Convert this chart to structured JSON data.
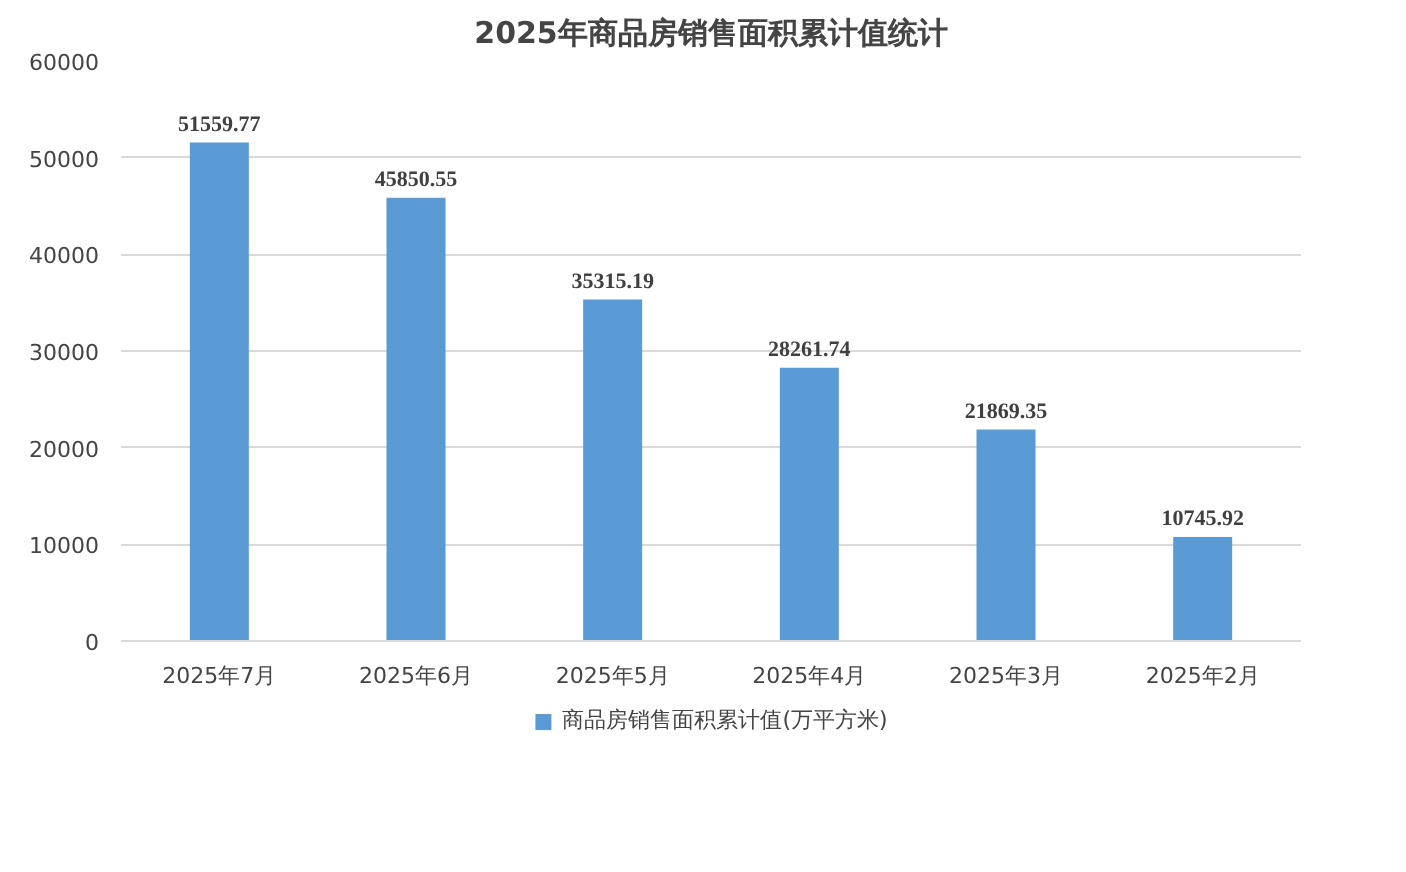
{
  "chart_data": {
    "type": "bar",
    "title": "2025年商品房销售面积累计值统计",
    "categories": [
      "2025年7月",
      "2025年6月",
      "2025年5月",
      "2025年4月",
      "2025年3月",
      "2025年2月"
    ],
    "series": [
      {
        "name": "商品房销售面积累计值(万平方米)",
        "color": "#5b9bd5",
        "values": [
          51559.77,
          45850.55,
          35315.19,
          28261.74,
          21869.35,
          10745.92
        ]
      }
    ],
    "ylim": [
      0,
      60000
    ],
    "yticks": [
      0,
      10000,
      20000,
      30000,
      40000,
      50000,
      60000
    ],
    "grid": "y",
    "legend": "bottom",
    "data_labels": true
  }
}
